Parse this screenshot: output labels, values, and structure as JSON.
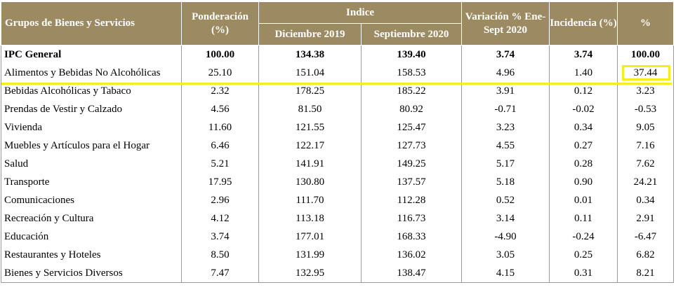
{
  "header": {
    "grupos": "Grupos de Bienes y Servicios",
    "ponderacion": "Ponderación (%)",
    "indice": "Indice",
    "dic2019": "Diciembre 2019",
    "sep2020": "Septiembre 2020",
    "variacion": "Variación % Ene-Sept 2020",
    "incidencia": "Incidencia (%)",
    "pct": "%"
  },
  "highlight_color": "#f5ee1f",
  "header_color": "#9c8a63",
  "rows": [
    {
      "grupo": "IPC General",
      "ponderacion": "100.00",
      "dic2019": "134.38",
      "sep2020": "139.40",
      "variacion": "3.74",
      "incidencia": "3.74",
      "pct": "100.00"
    },
    {
      "grupo": "Alimentos y Bebidas No Alcohólicas",
      "ponderacion": "25.10",
      "dic2019": "151.04",
      "sep2020": "158.53",
      "variacion": "4.96",
      "incidencia": "1.40",
      "pct": "37.44"
    },
    {
      "grupo": "Bebidas Alcohólicas y Tabaco",
      "ponderacion": "2.32",
      "dic2019": "178.25",
      "sep2020": "185.22",
      "variacion": "3.91",
      "incidencia": "0.12",
      "pct": "3.23"
    },
    {
      "grupo": "Prendas de Vestir y Calzado",
      "ponderacion": "4.56",
      "dic2019": "81.50",
      "sep2020": "80.92",
      "variacion": "-0.71",
      "incidencia": "-0.02",
      "pct": "-0.53"
    },
    {
      "grupo": "Vivienda",
      "ponderacion": "11.60",
      "dic2019": "121.55",
      "sep2020": "125.47",
      "variacion": "3.23",
      "incidencia": "0.34",
      "pct": "9.05"
    },
    {
      "grupo": "Muebles y Artículos para el Hogar",
      "ponderacion": "6.46",
      "dic2019": "122.17",
      "sep2020": "127.73",
      "variacion": "4.55",
      "incidencia": "0.27",
      "pct": "7.16"
    },
    {
      "grupo": "Salud",
      "ponderacion": "5.21",
      "dic2019": "141.91",
      "sep2020": "149.25",
      "variacion": "5.17",
      "incidencia": "0.28",
      "pct": "7.62"
    },
    {
      "grupo": "Transporte",
      "ponderacion": "17.95",
      "dic2019": "130.80",
      "sep2020": "137.57",
      "variacion": "5.18",
      "incidencia": "0.90",
      "pct": "24.21"
    },
    {
      "grupo": "Comunicaciones",
      "ponderacion": "2.96",
      "dic2019": "111.70",
      "sep2020": "112.28",
      "variacion": "0.52",
      "incidencia": "0.01",
      "pct": "0.34"
    },
    {
      "grupo": "Recreación y Cultura",
      "ponderacion": "4.12",
      "dic2019": "113.18",
      "sep2020": "116.73",
      "variacion": "3.14",
      "incidencia": "0.11",
      "pct": "2.91"
    },
    {
      "grupo": "Educación",
      "ponderacion": "3.74",
      "dic2019": "177.01",
      "sep2020": "168.33",
      "variacion": "-4.90",
      "incidencia": "-0.24",
      "pct": "-6.47"
    },
    {
      "grupo": "Restaurantes y Hoteles",
      "ponderacion": "8.50",
      "dic2019": "131.99",
      "sep2020": "136.02",
      "variacion": "3.05",
      "incidencia": "0.25",
      "pct": "6.82"
    },
    {
      "grupo": "Bienes y Servicios Diversos",
      "ponderacion": "7.47",
      "dic2019": "132.95",
      "sep2020": "138.47",
      "variacion": "4.15",
      "incidencia": "0.31",
      "pct": "8.21"
    }
  ]
}
